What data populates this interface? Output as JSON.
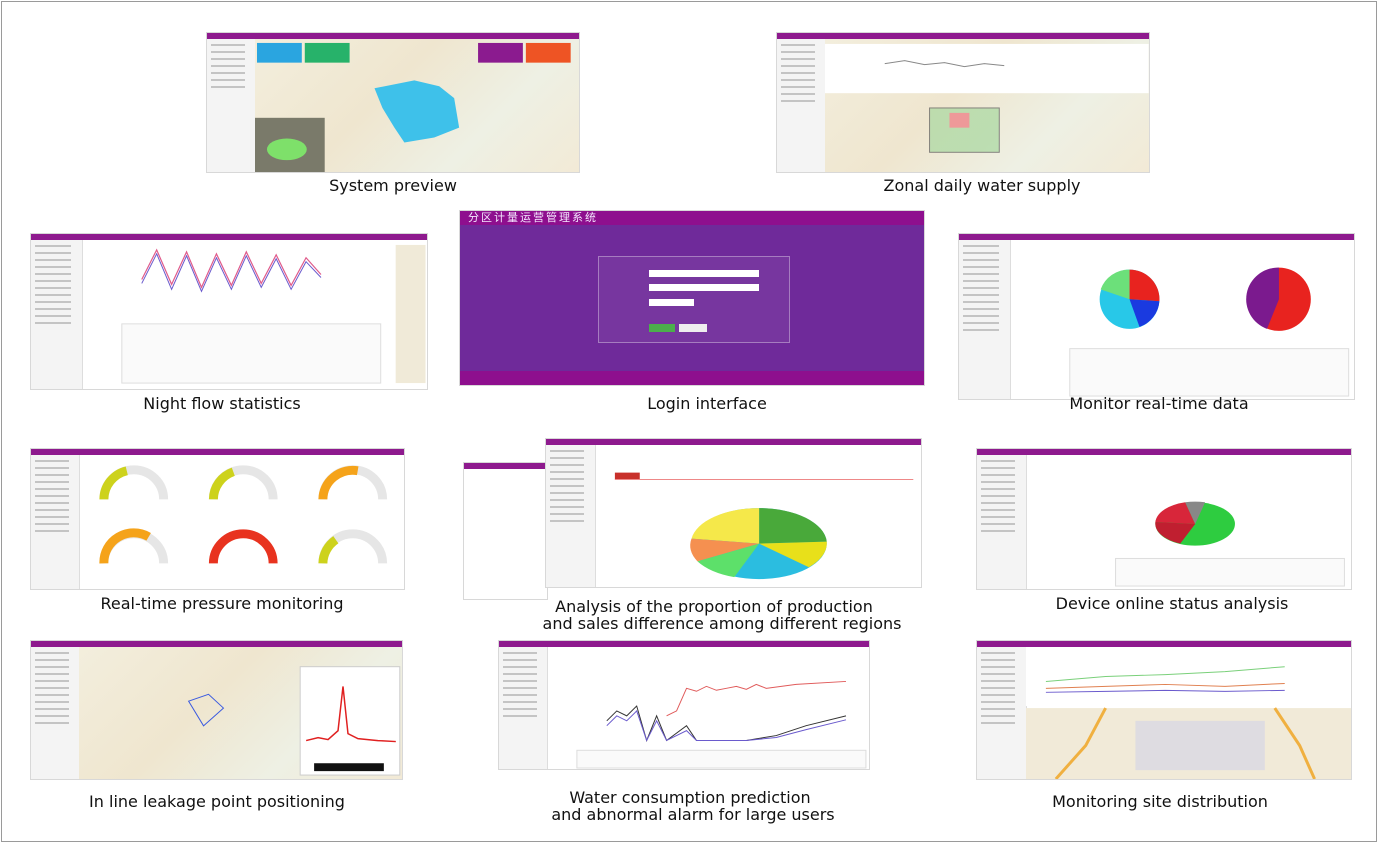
{
  "captions": {
    "system_preview": "System preview",
    "zonal_daily_water_supply": "Zonal daily water supply",
    "night_flow_statistics": "Night flow statistics",
    "login_interface": "Login interface",
    "monitor_realtime_data": "Monitor real-time data",
    "realtime_pressure_monitoring": "Real-time pressure monitoring",
    "analysis_line1": "Analysis of the proportion of production",
    "analysis_line2": "and sales difference among different regions",
    "device_online_status": "Device online status analysis",
    "leakage_positioning": "In line leakage point positioning",
    "water_prediction_line1": "Water consumption prediction",
    "water_prediction_line2": "and abnormal alarm for large users",
    "monitoring_site_distribution": "Monitoring site distribution"
  },
  "login": {
    "title": "分区计量运营管理系统"
  },
  "colors": {
    "brand_purple": "#8e1a8e",
    "login_bg": "#6f2a9a",
    "map_blue": "#3ec1ea",
    "green": "#4cae4c",
    "red": "#e8231f"
  }
}
